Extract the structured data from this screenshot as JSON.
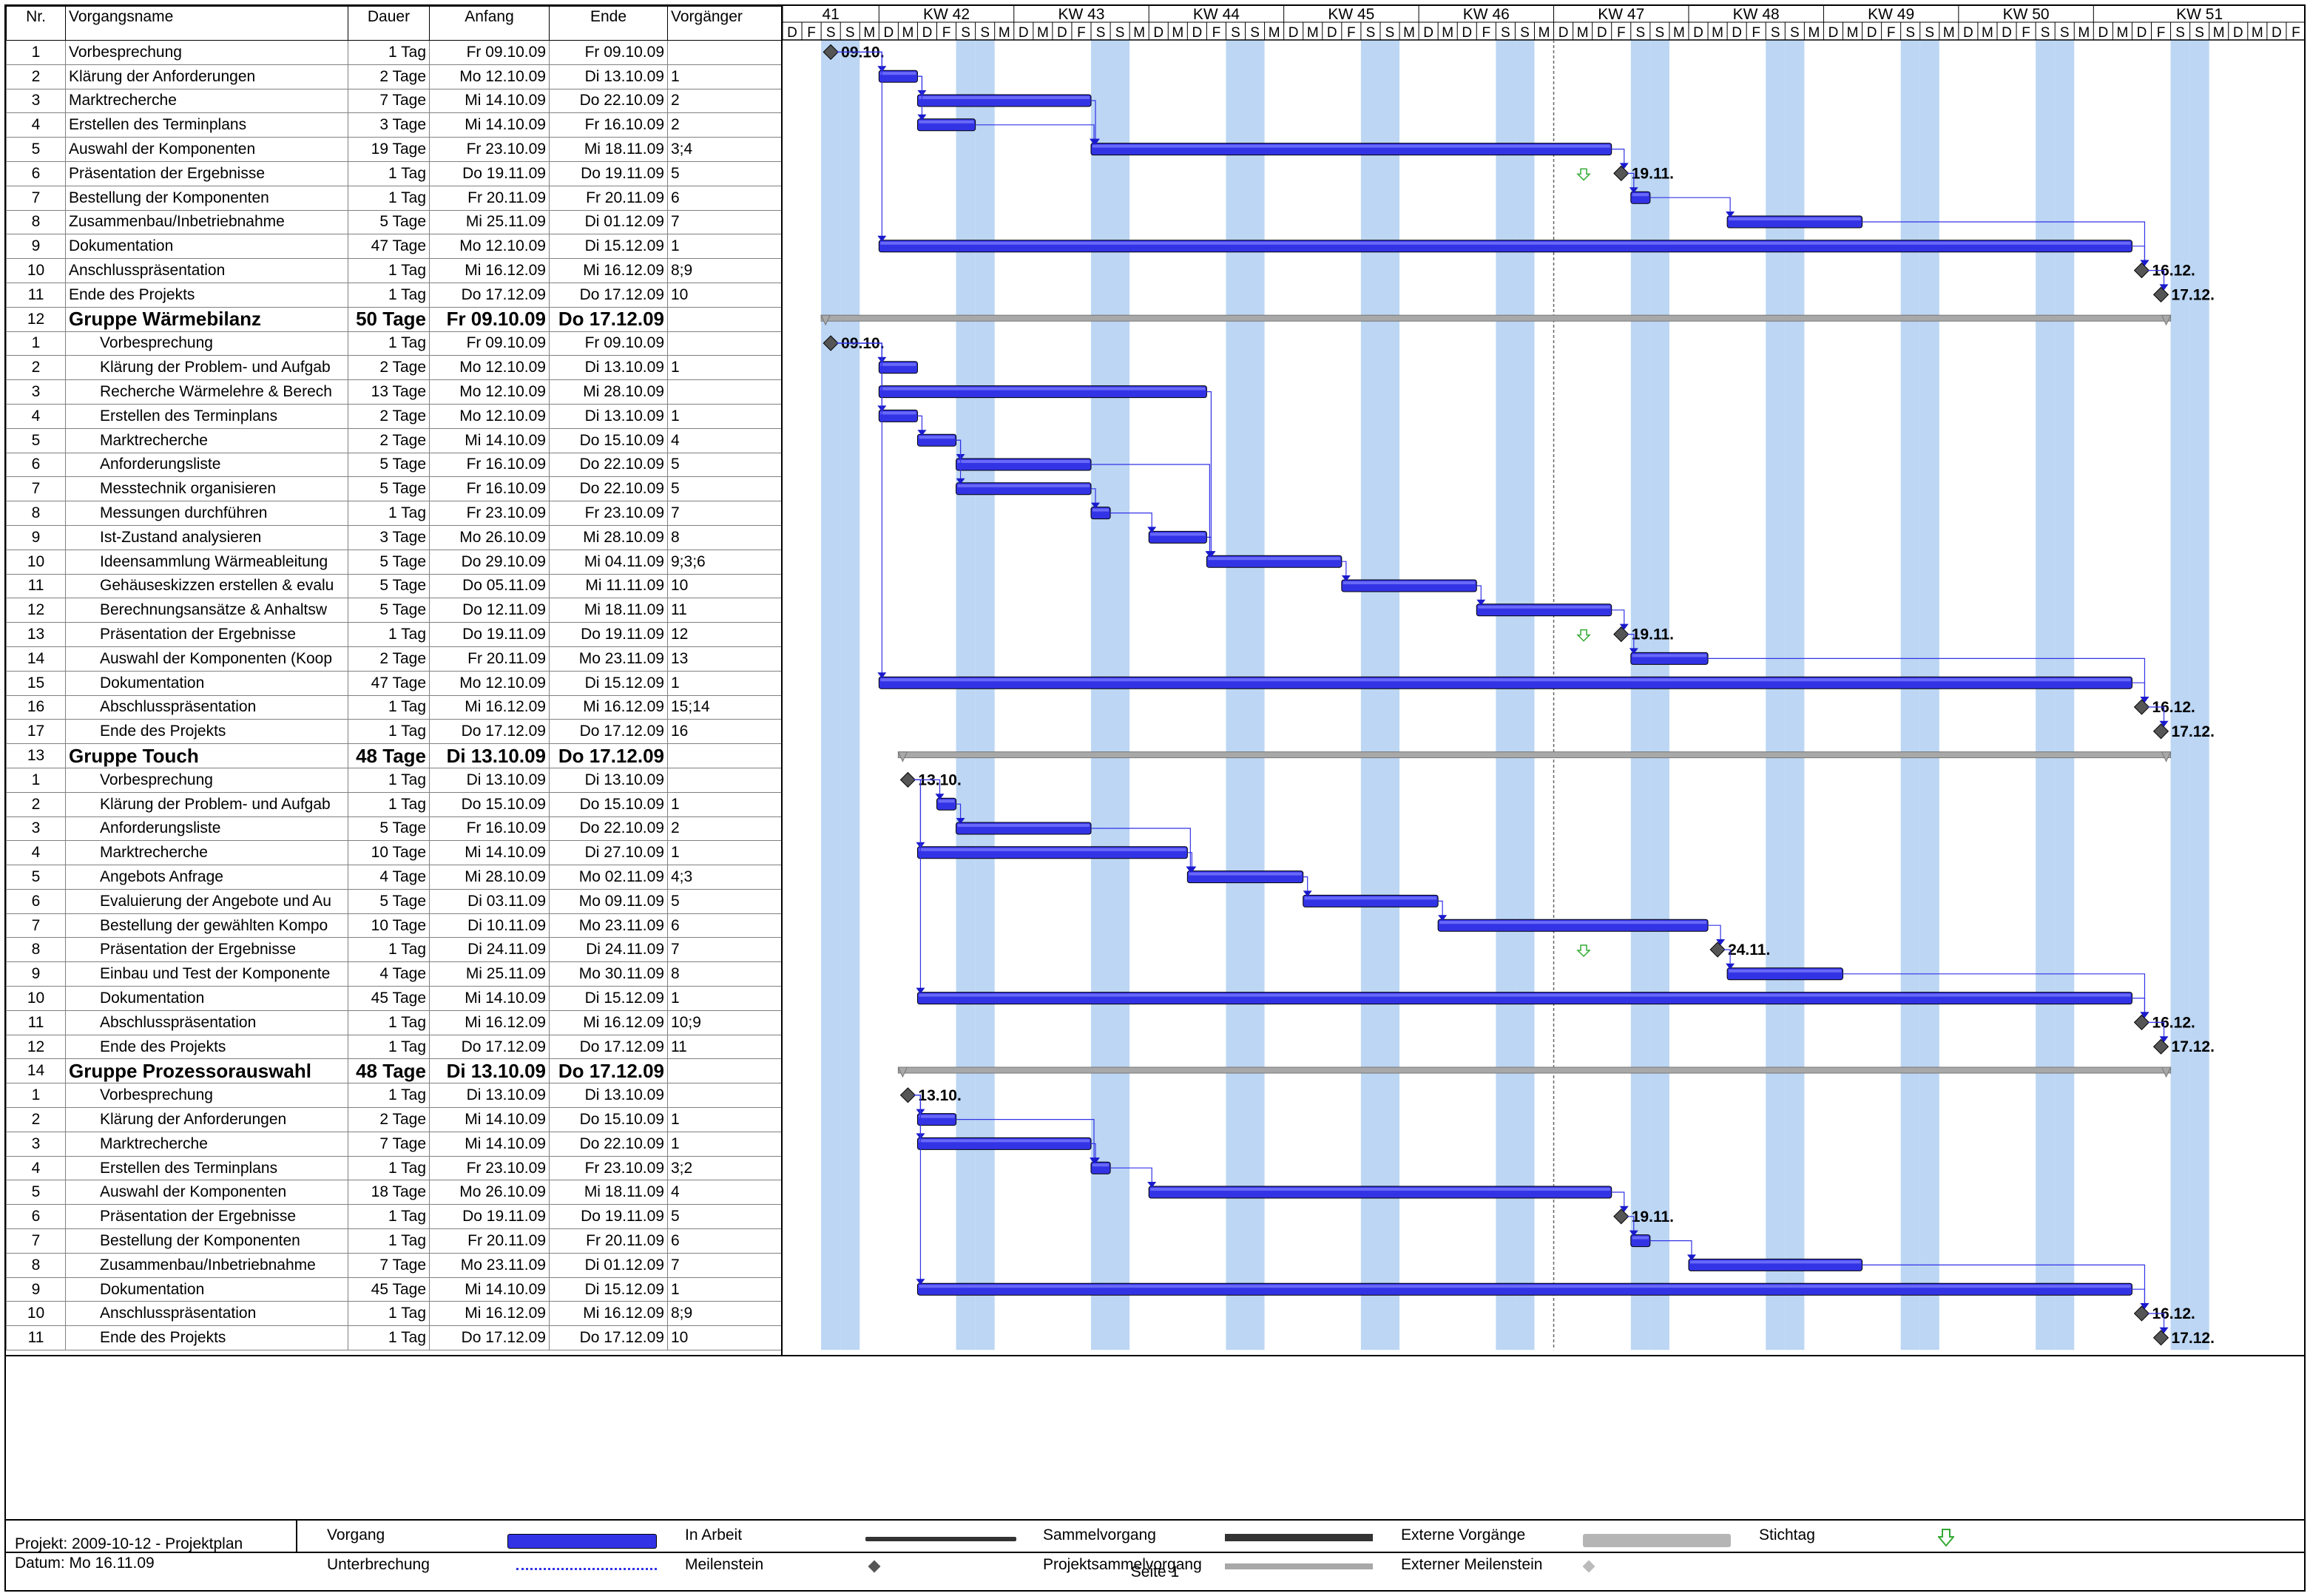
{
  "columns": [
    "Nr.",
    "Vorgangsname",
    "Dauer",
    "Anfang",
    "Ende",
    "Vorgänger"
  ],
  "weeks": [
    "41",
    "KW 42",
    "KW 43",
    "KW 44",
    "KW 45",
    "KW 46",
    "KW 47",
    "KW 48",
    "KW 49",
    "KW 50",
    "KW 51"
  ],
  "day_letters": [
    "D",
    "F",
    "S",
    "S",
    "M",
    "D",
    "M",
    "D",
    "F",
    "S",
    "S",
    "M",
    "D",
    "M",
    "D",
    "F",
    "S",
    "S",
    "M",
    "D",
    "M",
    "D",
    "F",
    "S",
    "S",
    "M",
    "D",
    "M",
    "D",
    "F",
    "S",
    "S",
    "M",
    "D",
    "M",
    "D",
    "F",
    "S",
    "S",
    "M",
    "D",
    "M",
    "D",
    "F",
    "S",
    "S",
    "M",
    "D",
    "M",
    "D",
    "F",
    "S",
    "S",
    "M",
    "D",
    "M",
    "D",
    "F",
    "S",
    "S",
    "M",
    "D",
    "M",
    "D",
    "F",
    "S",
    "S",
    "M",
    "D",
    "M",
    "D",
    "F",
    "S",
    "S",
    "M",
    "D",
    "M",
    "D",
    "F",
    "S",
    "S"
  ],
  "rows": [
    {
      "nr": "1",
      "name": "Vorbesprechung",
      "dur": "1 Tag",
      "start": "Fr 09.10.09",
      "end": "Fr 09.10.09",
      "pred": "",
      "type": "task"
    },
    {
      "nr": "2",
      "name": "Klärung der Anforderungen",
      "dur": "2 Tage",
      "start": "Mo 12.10.09",
      "end": "Di 13.10.09",
      "pred": "1",
      "type": "task"
    },
    {
      "nr": "3",
      "name": "Marktrecherche",
      "dur": "7 Tage",
      "start": "Mi 14.10.09",
      "end": "Do 22.10.09",
      "pred": "2",
      "type": "task"
    },
    {
      "nr": "4",
      "name": "Erstellen des Terminplans",
      "dur": "3 Tage",
      "start": "Mi 14.10.09",
      "end": "Fr 16.10.09",
      "pred": "2",
      "type": "task"
    },
    {
      "nr": "5",
      "name": "Auswahl der Komponenten",
      "dur": "19 Tage",
      "start": "Fr 23.10.09",
      "end": "Mi 18.11.09",
      "pred": "3;4",
      "type": "task"
    },
    {
      "nr": "6",
      "name": "Präsentation der Ergebnisse",
      "dur": "1 Tag",
      "start": "Do 19.11.09",
      "end": "Do 19.11.09",
      "pred": "5",
      "type": "task"
    },
    {
      "nr": "7",
      "name": "Bestellung der Komponenten",
      "dur": "1 Tag",
      "start": "Fr 20.11.09",
      "end": "Fr 20.11.09",
      "pred": "6",
      "type": "task"
    },
    {
      "nr": "8",
      "name": "Zusammenbau/Inbetriebnahme",
      "dur": "5 Tage",
      "start": "Mi 25.11.09",
      "end": "Di 01.12.09",
      "pred": "7",
      "type": "task"
    },
    {
      "nr": "9",
      "name": "Dokumentation",
      "dur": "47 Tage",
      "start": "Mo 12.10.09",
      "end": "Di 15.12.09",
      "pred": "1",
      "type": "task"
    },
    {
      "nr": "10",
      "name": "Anschlusspräsentation",
      "dur": "1 Tag",
      "start": "Mi 16.12.09",
      "end": "Mi 16.12.09",
      "pred": "8;9",
      "type": "task"
    },
    {
      "nr": "11",
      "name": "Ende des Projekts",
      "dur": "1 Tag",
      "start": "Do 17.12.09",
      "end": "Do 17.12.09",
      "pred": "10",
      "type": "task"
    },
    {
      "nr": "12",
      "name": "Gruppe Wärmebilanz",
      "dur": "50 Tage",
      "start": "Fr 09.10.09",
      "end": "Do 17.12.09",
      "pred": "",
      "type": "group"
    },
    {
      "nr": "1",
      "name": "Vorbesprechung",
      "dur": "1 Tag",
      "start": "Fr 09.10.09",
      "end": "Fr 09.10.09",
      "pred": "",
      "type": "sub"
    },
    {
      "nr": "2",
      "name": "Klärung der Problem- und Aufgab",
      "dur": "2 Tage",
      "start": "Mo 12.10.09",
      "end": "Di 13.10.09",
      "pred": "1",
      "type": "sub"
    },
    {
      "nr": "3",
      "name": "Recherche Wärmelehre & Berech",
      "dur": "13 Tage",
      "start": "Mo 12.10.09",
      "end": "Mi 28.10.09",
      "pred": "",
      "type": "sub"
    },
    {
      "nr": "4",
      "name": "Erstellen des Terminplans",
      "dur": "2 Tage",
      "start": "Mo 12.10.09",
      "end": "Di 13.10.09",
      "pred": "1",
      "type": "sub"
    },
    {
      "nr": "5",
      "name": "Marktrecherche",
      "dur": "2 Tage",
      "start": "Mi 14.10.09",
      "end": "Do 15.10.09",
      "pred": "4",
      "type": "sub"
    },
    {
      "nr": "6",
      "name": "Anforderungsliste",
      "dur": "5 Tage",
      "start": "Fr 16.10.09",
      "end": "Do 22.10.09",
      "pred": "5",
      "type": "sub"
    },
    {
      "nr": "7",
      "name": "Messtechnik organisieren",
      "dur": "5 Tage",
      "start": "Fr 16.10.09",
      "end": "Do 22.10.09",
      "pred": "5",
      "type": "sub"
    },
    {
      "nr": "8",
      "name": "Messungen durchführen",
      "dur": "1 Tag",
      "start": "Fr 23.10.09",
      "end": "Fr 23.10.09",
      "pred": "7",
      "type": "sub"
    },
    {
      "nr": "9",
      "name": "Ist-Zustand analysieren",
      "dur": "3 Tage",
      "start": "Mo 26.10.09",
      "end": "Mi 28.10.09",
      "pred": "8",
      "type": "sub"
    },
    {
      "nr": "10",
      "name": "Ideensammlung Wärmeableitung",
      "dur": "5 Tage",
      "start": "Do 29.10.09",
      "end": "Mi 04.11.09",
      "pred": "9;3;6",
      "type": "sub"
    },
    {
      "nr": "11",
      "name": "Gehäuseskizzen erstellen & evalu",
      "dur": "5 Tage",
      "start": "Do 05.11.09",
      "end": "Mi 11.11.09",
      "pred": "10",
      "type": "sub"
    },
    {
      "nr": "12",
      "name": "Berechnungsansätze & Anhaltsw",
      "dur": "5 Tage",
      "start": "Do 12.11.09",
      "end": "Mi 18.11.09",
      "pred": "11",
      "type": "sub"
    },
    {
      "nr": "13",
      "name": "Präsentation der Ergebnisse",
      "dur": "1 Tag",
      "start": "Do 19.11.09",
      "end": "Do 19.11.09",
      "pred": "12",
      "type": "sub"
    },
    {
      "nr": "14",
      "name": "Auswahl der Komponenten (Koop",
      "dur": "2 Tage",
      "start": "Fr 20.11.09",
      "end": "Mo 23.11.09",
      "pred": "13",
      "type": "sub"
    },
    {
      "nr": "15",
      "name": "Dokumentation",
      "dur": "47 Tage",
      "start": "Mo 12.10.09",
      "end": "Di 15.12.09",
      "pred": "1",
      "type": "sub"
    },
    {
      "nr": "16",
      "name": "Abschlusspräsentation",
      "dur": "1 Tag",
      "start": "Mi 16.12.09",
      "end": "Mi 16.12.09",
      "pred": "15;14",
      "type": "sub"
    },
    {
      "nr": "17",
      "name": "Ende des Projekts",
      "dur": "1 Tag",
      "start": "Do 17.12.09",
      "end": "Do 17.12.09",
      "pred": "16",
      "type": "sub"
    },
    {
      "nr": "13",
      "name": "Gruppe Touch",
      "dur": "48 Tage",
      "start": "Di 13.10.09",
      "end": "Do 17.12.09",
      "pred": "",
      "type": "group"
    },
    {
      "nr": "1",
      "name": "Vorbesprechung",
      "dur": "1 Tag",
      "start": "Di 13.10.09",
      "end": "Di 13.10.09",
      "pred": "",
      "type": "sub"
    },
    {
      "nr": "2",
      "name": "Klärung der Problem- und Aufgab",
      "dur": "1 Tag",
      "start": "Do 15.10.09",
      "end": "Do 15.10.09",
      "pred": "1",
      "type": "sub"
    },
    {
      "nr": "3",
      "name": "Anforderungsliste",
      "dur": "5 Tage",
      "start": "Fr 16.10.09",
      "end": "Do 22.10.09",
      "pred": "2",
      "type": "sub"
    },
    {
      "nr": "4",
      "name": "Marktrecherche",
      "dur": "10 Tage",
      "start": "Mi 14.10.09",
      "end": "Di 27.10.09",
      "pred": "1",
      "type": "sub"
    },
    {
      "nr": "5",
      "name": "Angebots Anfrage",
      "dur": "4 Tage",
      "start": "Mi 28.10.09",
      "end": "Mo 02.11.09",
      "pred": "4;3",
      "type": "sub"
    },
    {
      "nr": "6",
      "name": "Evaluierung der Angebote und Au",
      "dur": "5 Tage",
      "start": "Di 03.11.09",
      "end": "Mo 09.11.09",
      "pred": "5",
      "type": "sub"
    },
    {
      "nr": "7",
      "name": "Bestellung der gewählten Kompo",
      "dur": "10 Tage",
      "start": "Di 10.11.09",
      "end": "Mo 23.11.09",
      "pred": "6",
      "type": "sub"
    },
    {
      "nr": "8",
      "name": "Präsentation der Ergebnisse",
      "dur": "1 Tag",
      "start": "Di 24.11.09",
      "end": "Di 24.11.09",
      "pred": "7",
      "type": "sub"
    },
    {
      "nr": "9",
      "name": "Einbau und Test der Komponente",
      "dur": "4 Tage",
      "start": "Mi 25.11.09",
      "end": "Mo 30.11.09",
      "pred": "8",
      "type": "sub"
    },
    {
      "nr": "10",
      "name": "Dokumentation",
      "dur": "45 Tage",
      "start": "Mi 14.10.09",
      "end": "Di 15.12.09",
      "pred": "1",
      "type": "sub"
    },
    {
      "nr": "11",
      "name": "Abschlusspräsentation",
      "dur": "1 Tag",
      "start": "Mi 16.12.09",
      "end": "Mi 16.12.09",
      "pred": "10;9",
      "type": "sub"
    },
    {
      "nr": "12",
      "name": "Ende des Projekts",
      "dur": "1 Tag",
      "start": "Do 17.12.09",
      "end": "Do 17.12.09",
      "pred": "11",
      "type": "sub"
    },
    {
      "nr": "14",
      "name": "Gruppe Prozessorauswahl",
      "dur": "48 Tage",
      "start": "Di 13.10.09",
      "end": "Do 17.12.09",
      "pred": "",
      "type": "group"
    },
    {
      "nr": "1",
      "name": "Vorbesprechung",
      "dur": "1 Tag",
      "start": "Di 13.10.09",
      "end": "Di 13.10.09",
      "pred": "",
      "type": "sub"
    },
    {
      "nr": "2",
      "name": "Klärung der Anforderungen",
      "dur": "2 Tage",
      "start": "Mi 14.10.09",
      "end": "Do 15.10.09",
      "pred": "1",
      "type": "sub"
    },
    {
      "nr": "3",
      "name": "Marktrecherche",
      "dur": "7 Tage",
      "start": "Mi 14.10.09",
      "end": "Do 22.10.09",
      "pred": "1",
      "type": "sub"
    },
    {
      "nr": "4",
      "name": "Erstellen des Terminplans",
      "dur": "1 Tag",
      "start": "Fr 23.10.09",
      "end": "Fr 23.10.09",
      "pred": "3;2",
      "type": "sub"
    },
    {
      "nr": "5",
      "name": "Auswahl der Komponenten",
      "dur": "18 Tage",
      "start": "Mo 26.10.09",
      "end": "Mi 18.11.09",
      "pred": "4",
      "type": "sub"
    },
    {
      "nr": "6",
      "name": "Präsentation der Ergebnisse",
      "dur": "1 Tag",
      "start": "Do 19.11.09",
      "end": "Do 19.11.09",
      "pred": "5",
      "type": "sub"
    },
    {
      "nr": "7",
      "name": "Bestellung der Komponenten",
      "dur": "1 Tag",
      "start": "Fr 20.11.09",
      "end": "Fr 20.11.09",
      "pred": "6",
      "type": "sub"
    },
    {
      "nr": "8",
      "name": "Zusammenbau/Inbetriebnahme",
      "dur": "7 Tage",
      "start": "Mo 23.11.09",
      "end": "Di 01.12.09",
      "pred": "7",
      "type": "sub"
    },
    {
      "nr": "9",
      "name": "Dokumentation",
      "dur": "45 Tage",
      "start": "Mi 14.10.09",
      "end": "Di 15.12.09",
      "pred": "1",
      "type": "sub"
    },
    {
      "nr": "10",
      "name": "Anschlusspräsentation",
      "dur": "1 Tag",
      "start": "Mi 16.12.09",
      "end": "Mi 16.12.09",
      "pred": "8;9",
      "type": "sub"
    },
    {
      "nr": "11",
      "name": "Ende des Projekts",
      "dur": "1 Tag",
      "start": "Do 17.12.09",
      "end": "Do 17.12.09",
      "pred": "10",
      "type": "sub"
    }
  ],
  "milestone_labels": [
    {
      "row": 0,
      "label": "09.10."
    },
    {
      "row": 5,
      "label": "19.11."
    },
    {
      "row": 9,
      "label": "16.12."
    },
    {
      "row": 10,
      "label": "17.12."
    },
    {
      "row": 12,
      "label": "09.10."
    },
    {
      "row": 24,
      "label": "19.11."
    },
    {
      "row": 27,
      "label": "16.12."
    },
    {
      "row": 28,
      "label": "17.12."
    },
    {
      "row": 30,
      "label": "13.10."
    },
    {
      "row": 37,
      "label": "24.11."
    },
    {
      "row": 40,
      "label": "16.12."
    },
    {
      "row": 41,
      "label": "17.12."
    },
    {
      "row": 43,
      "label": "13.10."
    },
    {
      "row": 48,
      "label": "19.11."
    },
    {
      "row": 52,
      "label": "16.12."
    },
    {
      "row": 53,
      "label": "17.12."
    }
  ],
  "footer": {
    "project": "Projekt: 2009-10-12 - Projektplan",
    "date": "Datum: Mo 16.11.09",
    "page": "Seite 1"
  },
  "legend": {
    "vorgang": "Vorgang",
    "unterbrechung": "Unterbrechung",
    "in_arbeit": "In Arbeit",
    "meilenstein": "Meilenstein",
    "sammelvorgang": "Sammelvorgang",
    "projektsammelvorgang": "Projektsammelvorgang",
    "externe_vorgaenge": "Externe Vorgänge",
    "externer_meilenstein": "Externer Meilenstein",
    "stichtag": "Stichtag"
  },
  "colors": {
    "task_bar": "#3333e6",
    "weekend": "#bcd6f4",
    "summary_bar": "#a8a8a8",
    "milestone": "#555555",
    "deadline": "#33aa33"
  }
}
